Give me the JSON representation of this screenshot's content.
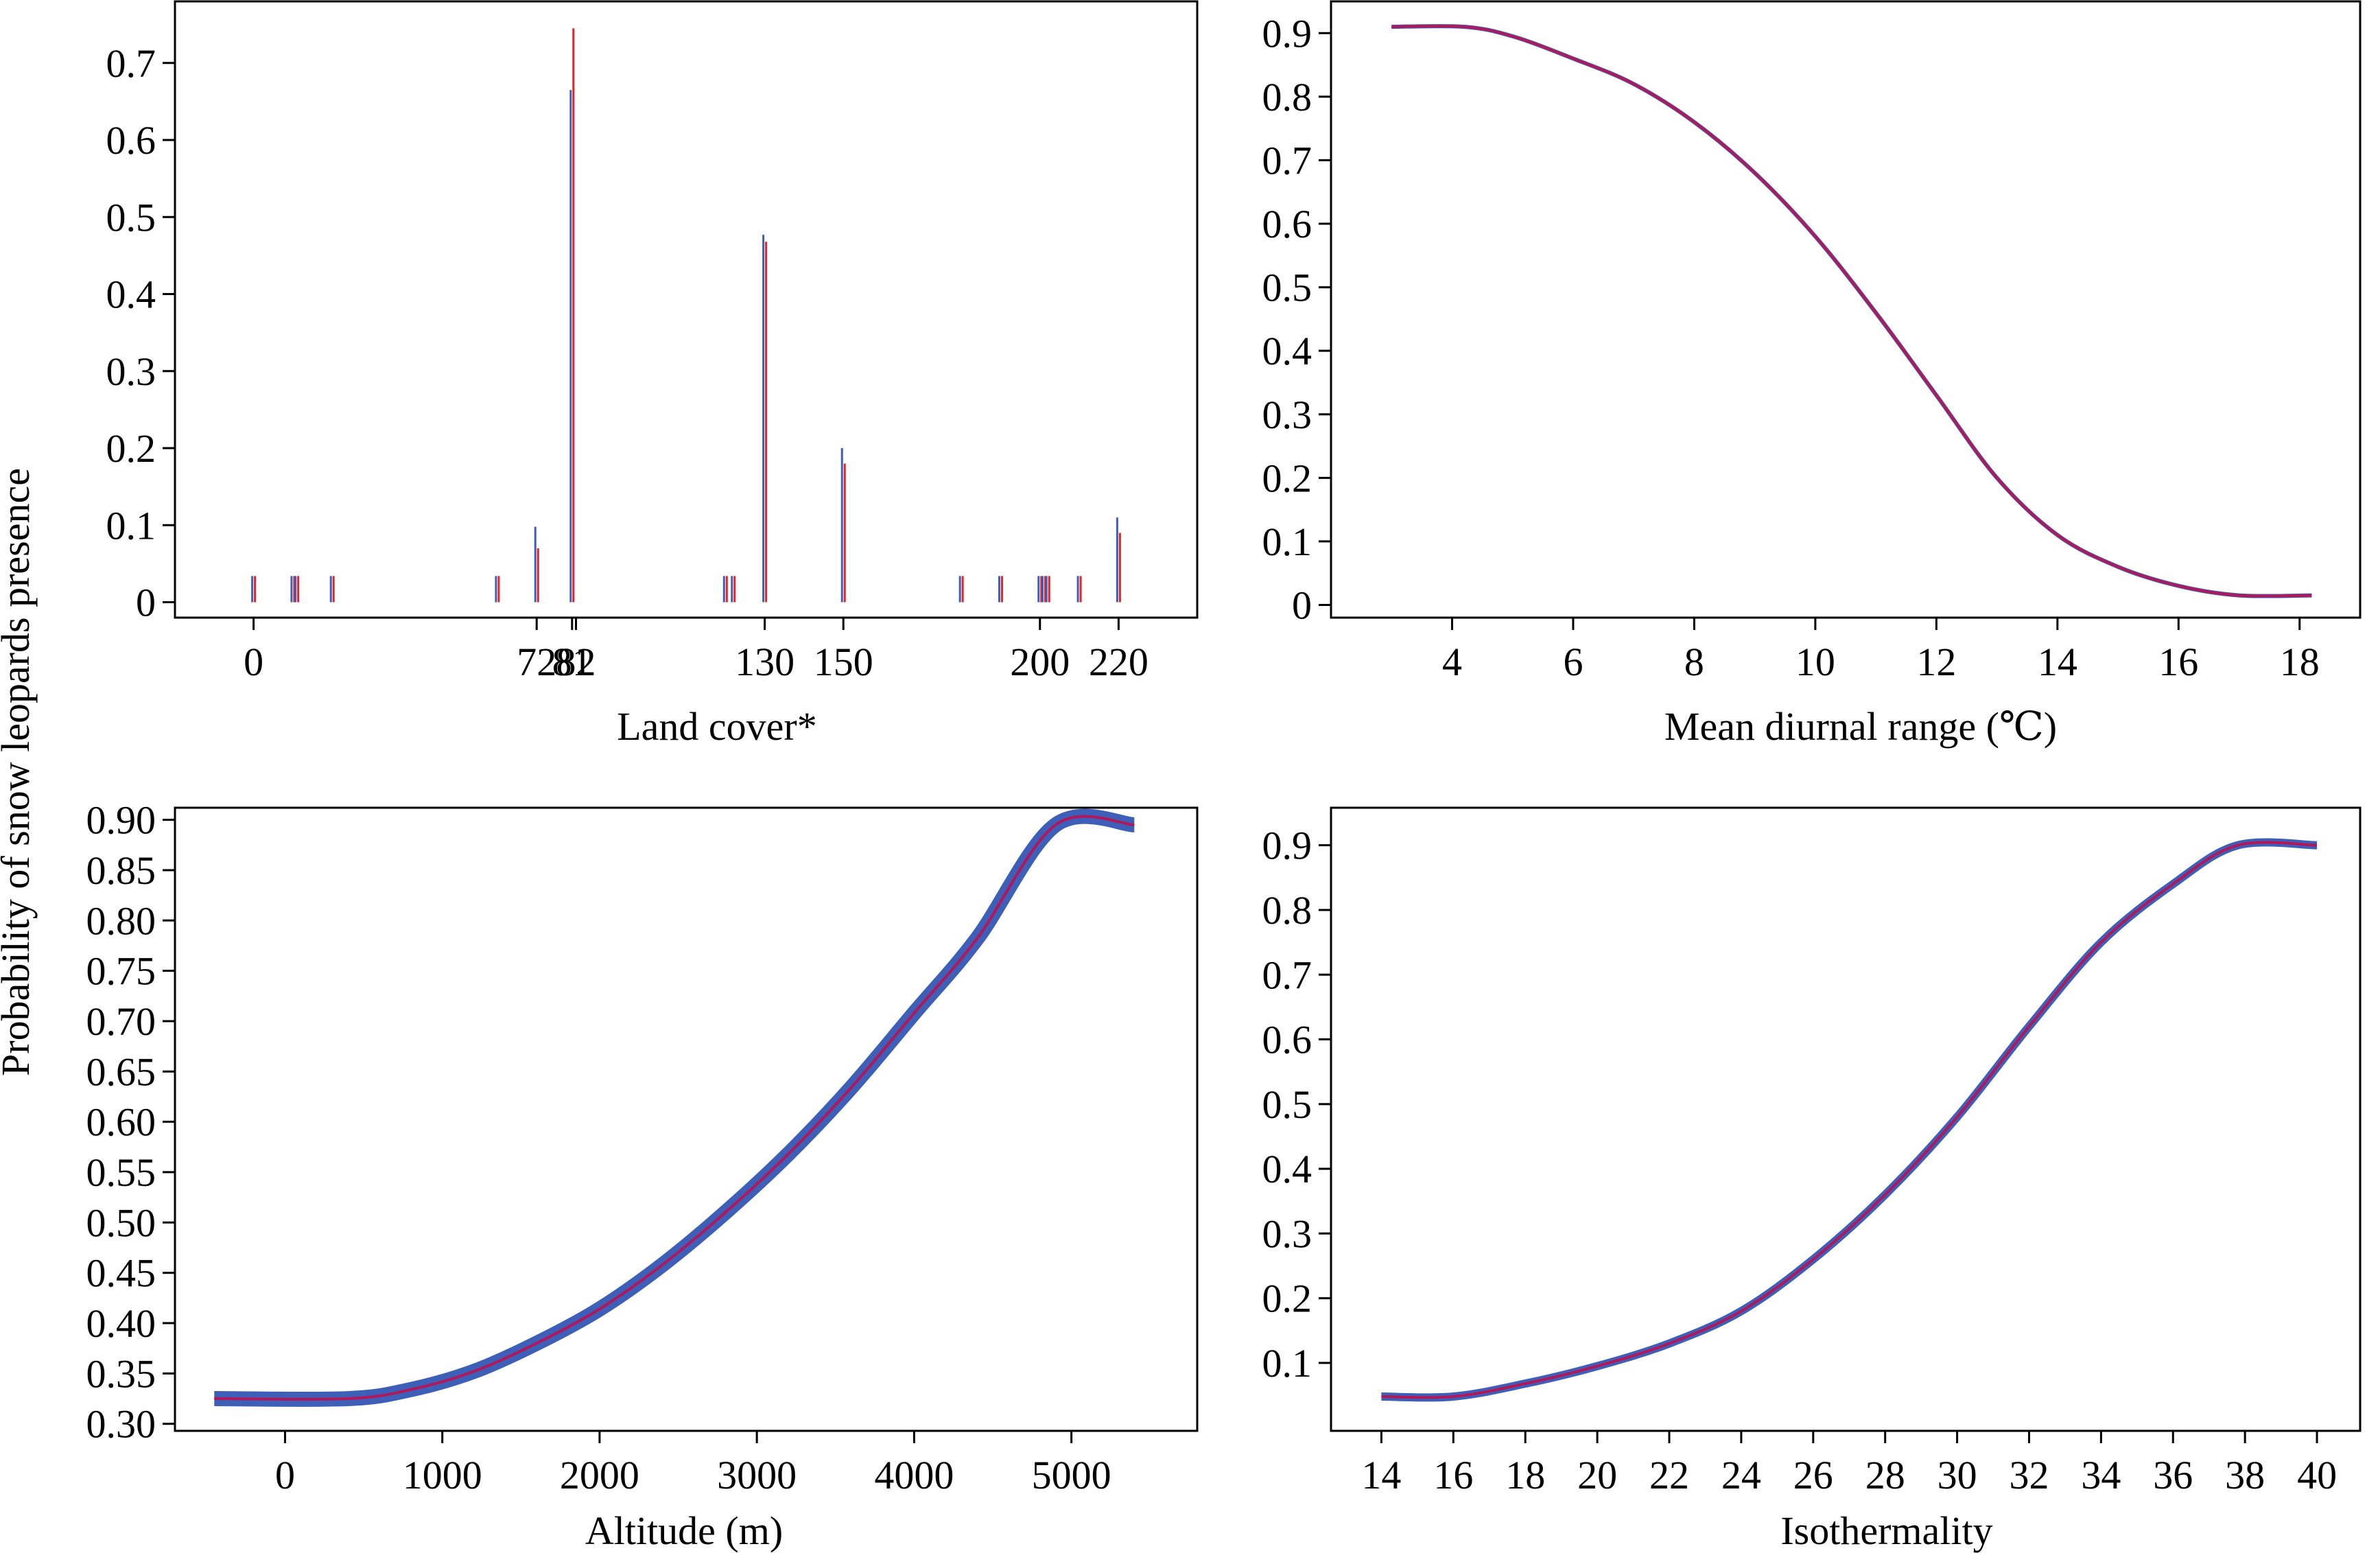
{
  "figure": {
    "ylabel": "Probability of snow leopards presence",
    "colors": {
      "blue": "#3d5fb8",
      "red": "#e8202a",
      "magenta": "#b0185a",
      "axis": "#000000"
    }
  },
  "chart_data": [
    {
      "type": "bar",
      "xlabel": "Land cover*",
      "ylim": [
        -0.02,
        0.78
      ],
      "xlim": [
        -20,
        240
      ],
      "yticks": [
        0,
        0.1,
        0.2,
        0.3,
        0.4,
        0.5,
        0.6,
        0.7
      ],
      "ytick_labels": [
        "0",
        "0.1",
        "0.2",
        "0.3",
        "0.4",
        "0.5",
        "0.6",
        "0.7"
      ],
      "xtick_labels": [
        {
          "value": 0,
          "label": "0"
        },
        {
          "value": 72,
          "label": "72"
        },
        {
          "value": 81,
          "label": "81"
        },
        {
          "value": 82,
          "label": "82"
        },
        {
          "value": 130,
          "label": "130"
        },
        {
          "value": 150,
          "label": "150"
        },
        {
          "value": 200,
          "label": "200"
        },
        {
          "value": 220,
          "label": "220"
        }
      ],
      "bars": [
        {
          "x": 0,
          "blue": 0.034,
          "red": 0.034
        },
        {
          "x": 10,
          "blue": 0.034,
          "red": 0.034
        },
        {
          "x": 11,
          "blue": 0.034,
          "red": 0.034
        },
        {
          "x": 20,
          "blue": 0.034,
          "red": 0.034
        },
        {
          "x": 62,
          "blue": 0.034,
          "red": 0.034
        },
        {
          "x": 72,
          "blue": 0.098,
          "red": 0.07
        },
        {
          "x": 81,
          "blue": 0.665,
          "red": 0.745
        },
        {
          "x": 82,
          "blue": 0.0,
          "red": 0.0
        },
        {
          "x": 120,
          "blue": 0.034,
          "red": 0.034
        },
        {
          "x": 122,
          "blue": 0.034,
          "red": 0.034
        },
        {
          "x": 130,
          "blue": 0.477,
          "red": 0.468
        },
        {
          "x": 150,
          "blue": 0.2,
          "red": 0.18
        },
        {
          "x": 180,
          "blue": 0.034,
          "red": 0.034
        },
        {
          "x": 190,
          "blue": 0.034,
          "red": 0.034
        },
        {
          "x": 200,
          "blue": 0.034,
          "red": 0.034
        },
        {
          "x": 201,
          "blue": 0.034,
          "red": 0.034
        },
        {
          "x": 202,
          "blue": 0.034,
          "red": 0.034
        },
        {
          "x": 210,
          "blue": 0.034,
          "red": 0.034
        },
        {
          "x": 220,
          "blue": 0.11,
          "red": 0.09
        }
      ]
    },
    {
      "type": "line",
      "xlabel": "Mean diurnal range (℃)",
      "xlim": [
        2.0,
        19.0
      ],
      "ylim": [
        -0.02,
        0.95
      ],
      "xticks": [
        4,
        6,
        8,
        10,
        12,
        14,
        16,
        18
      ],
      "xtick_labels": [
        "4",
        "6",
        "8",
        "10",
        "12",
        "14",
        "16",
        "18"
      ],
      "yticks": [
        0,
        0.1,
        0.2,
        0.3,
        0.4,
        0.5,
        0.6,
        0.7,
        0.8,
        0.9
      ],
      "ytick_labels": [
        "0",
        "0.1",
        "0.2",
        "0.3",
        "0.4",
        "0.5",
        "0.6",
        "0.7",
        "0.8",
        "0.9"
      ],
      "band_width": 6,
      "series": [
        {
          "x": [
            3.0,
            4.2,
            5.0,
            6.0,
            7.0,
            8.0,
            9.0,
            10.0,
            11.0,
            12.0,
            13.0,
            14.0,
            15.0,
            16.0,
            17.0,
            18.2
          ],
          "y": [
            0.91,
            0.91,
            0.895,
            0.86,
            0.82,
            0.76,
            0.68,
            0.58,
            0.46,
            0.33,
            0.2,
            0.11,
            0.06,
            0.03,
            0.015,
            0.015
          ]
        }
      ]
    },
    {
      "type": "line",
      "xlabel": "Altitude (m)",
      "xlim": [
        -700,
        5800
      ],
      "ylim": [
        0.293,
        0.912
      ],
      "xticks": [
        0,
        1000,
        2000,
        3000,
        4000,
        5000
      ],
      "xtick_labels": [
        "0",
        "1000",
        "2000",
        "3000",
        "4000",
        "5000"
      ],
      "yticks": [
        0.3,
        0.35,
        0.4,
        0.45,
        0.5,
        0.55,
        0.6,
        0.65,
        0.7,
        0.75,
        0.8,
        0.85,
        0.9
      ],
      "ytick_labels": [
        "0.30",
        "0.35",
        "0.40",
        "0.45",
        "0.50",
        "0.55",
        "0.60",
        "0.65",
        "0.70",
        "0.75",
        "0.80",
        "0.85",
        "0.90"
      ],
      "band_width": 22,
      "series": [
        {
          "x": [
            -450,
            400,
            800,
            1200,
            1600,
            2000,
            2400,
            2800,
            3200,
            3600,
            4000,
            4400,
            4900,
            5400
          ],
          "y": [
            0.325,
            0.325,
            0.334,
            0.352,
            0.38,
            0.414,
            0.458,
            0.51,
            0.568,
            0.634,
            0.708,
            0.782,
            0.895,
            0.895
          ]
        }
      ]
    },
    {
      "type": "line",
      "xlabel": "Isothermality",
      "xlim": [
        12.6,
        41.2
      ],
      "ylim": [
        -0.005,
        0.958
      ],
      "xticks": [
        14,
        16,
        18,
        20,
        22,
        24,
        26,
        28,
        30,
        32,
        34,
        36,
        38,
        40
      ],
      "xtick_labels": [
        "14",
        "16",
        "18",
        "20",
        "22",
        "24",
        "26",
        "28",
        "30",
        "32",
        "34",
        "36",
        "38",
        "40"
      ],
      "yticks": [
        0.1,
        0.2,
        0.3,
        0.4,
        0.5,
        0.6,
        0.7,
        0.8,
        0.9
      ],
      "ytick_labels": [
        "0.1",
        "0.2",
        "0.3",
        "0.4",
        "0.5",
        "0.6",
        "0.7",
        "0.8",
        "0.9"
      ],
      "band_width": 12,
      "series": [
        {
          "x": [
            14,
            16,
            18,
            20,
            22,
            24,
            26,
            28,
            30,
            32,
            34,
            36,
            37.8,
            40
          ],
          "y": [
            0.048,
            0.048,
            0.068,
            0.095,
            0.13,
            0.18,
            0.26,
            0.36,
            0.48,
            0.62,
            0.75,
            0.84,
            0.9,
            0.9
          ]
        }
      ]
    }
  ]
}
